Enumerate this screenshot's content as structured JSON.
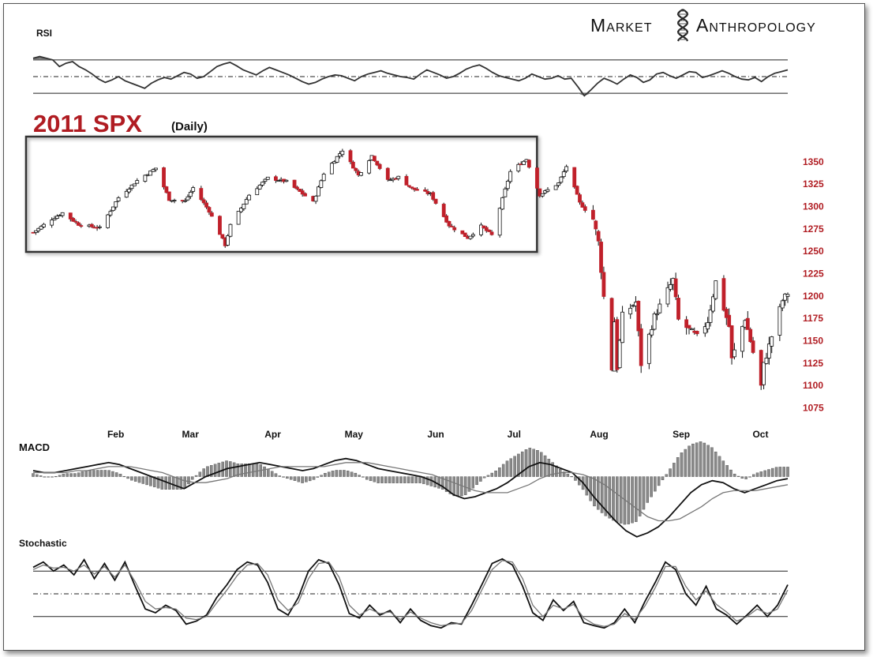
{
  "brand": {
    "word1": "Market",
    "word2": "Anthropology",
    "logo_icon": "dna-helix-icon"
  },
  "chart_data": [
    {
      "type": "candlestick",
      "title": "2011 SPX",
      "subtitle": "(Daily)",
      "yticks": [
        1350,
        1325,
        1300,
        1275,
        1250,
        1225,
        1200,
        1175,
        1150,
        1125,
        1100,
        1075
      ],
      "ylim": [
        1063,
        1372
      ],
      "xticks": [
        "Feb",
        "Mar",
        "Apr",
        "May",
        "Jun",
        "Jul",
        "Aug",
        "Sep",
        "Oct"
      ],
      "up_color": "#ffffff",
      "down_color": "#c0202a",
      "points": [
        {
          "date": "2011-01-03",
          "c": 1271
        },
        {
          "date": "2011-01-10",
          "c": 1286
        },
        {
          "date": "2011-01-14",
          "c": 1293
        },
        {
          "date": "2011-01-20",
          "c": 1280
        },
        {
          "date": "2011-01-28",
          "c": 1276
        },
        {
          "date": "2011-02-04",
          "c": 1310
        },
        {
          "date": "2011-02-11",
          "c": 1329
        },
        {
          "date": "2011-02-18",
          "c": 1343
        },
        {
          "date": "2011-02-23",
          "c": 1308
        },
        {
          "date": "2011-03-01",
          "c": 1306
        },
        {
          "date": "2011-03-04",
          "c": 1321
        },
        {
          "date": "2011-03-10",
          "c": 1295
        },
        {
          "date": "2011-03-16",
          "c": 1257
        },
        {
          "date": "2011-03-18",
          "c": 1279
        },
        {
          "date": "2011-03-25",
          "c": 1313
        },
        {
          "date": "2011-04-01",
          "c": 1332
        },
        {
          "date": "2011-04-08",
          "c": 1328
        },
        {
          "date": "2011-04-18",
          "c": 1305
        },
        {
          "date": "2011-04-22",
          "c": 1337
        },
        {
          "date": "2011-04-29",
          "c": 1363
        },
        {
          "date": "2011-05-05",
          "c": 1335
        },
        {
          "date": "2011-05-10",
          "c": 1357
        },
        {
          "date": "2011-05-16",
          "c": 1329
        },
        {
          "date": "2011-05-20",
          "c": 1333
        },
        {
          "date": "2011-05-25",
          "c": 1320
        },
        {
          "date": "2011-06-01",
          "c": 1314
        },
        {
          "date": "2011-06-08",
          "c": 1279
        },
        {
          "date": "2011-06-15",
          "c": 1265
        },
        {
          "date": "2011-06-20",
          "c": 1278
        },
        {
          "date": "2011-06-24",
          "c": 1268
        },
        {
          "date": "2011-07-01",
          "c": 1339
        },
        {
          "date": "2011-07-07",
          "c": 1353
        },
        {
          "date": "2011-07-12",
          "c": 1313
        },
        {
          "date": "2011-07-19",
          "c": 1326
        },
        {
          "date": "2011-07-22",
          "c": 1345
        },
        {
          "date": "2011-07-27",
          "c": 1304
        },
        {
          "date": "2011-08-01",
          "c": 1286
        },
        {
          "date": "2011-08-03",
          "c": 1260
        },
        {
          "date": "2011-08-05",
          "c": 1199
        },
        {
          "date": "2011-08-08",
          "c": 1119
        },
        {
          "date": "2011-08-09",
          "c": 1172
        },
        {
          "date": "2011-08-10",
          "c": 1120
        },
        {
          "date": "2011-08-12",
          "c": 1178
        },
        {
          "date": "2011-08-17",
          "c": 1193
        },
        {
          "date": "2011-08-19",
          "c": 1124
        },
        {
          "date": "2011-08-24",
          "c": 1177
        },
        {
          "date": "2011-08-31",
          "c": 1218
        },
        {
          "date": "2011-09-02",
          "c": 1173
        },
        {
          "date": "2011-09-09",
          "c": 1154
        },
        {
          "date": "2011-09-13",
          "c": 1172
        },
        {
          "date": "2011-09-16",
          "c": 1216
        },
        {
          "date": "2011-09-21",
          "c": 1166
        },
        {
          "date": "2011-09-22",
          "c": 1129
        },
        {
          "date": "2011-09-27",
          "c": 1175
        },
        {
          "date": "2011-10-03",
          "c": 1099
        },
        {
          "date": "2011-10-04",
          "c": 1123
        },
        {
          "date": "2011-10-07",
          "c": 1155
        },
        {
          "date": "2011-10-11",
          "c": 1195
        },
        {
          "date": "2011-10-13",
          "c": 1203
        }
      ],
      "highlight_range": [
        "2011-01-03",
        "2011-07-08"
      ]
    },
    {
      "type": "line",
      "title": "RSI",
      "levels": [
        70,
        50,
        30
      ],
      "series": [
        {
          "values": [
            72,
            74,
            72,
            70,
            62,
            66,
            68,
            62,
            58,
            53,
            47,
            43,
            46,
            50,
            45,
            42,
            39,
            36,
            42,
            46,
            49,
            47,
            51,
            55,
            53,
            48,
            50,
            56,
            62,
            65,
            67,
            63,
            58,
            55,
            52,
            57,
            61,
            58,
            55,
            52,
            48,
            44,
            41,
            43,
            47,
            50,
            52,
            51,
            48,
            45,
            50,
            53,
            55,
            57,
            54,
            52,
            50,
            49,
            47,
            53,
            58,
            55,
            52,
            48,
            50,
            54,
            59,
            62,
            64,
            60,
            55,
            51,
            49,
            47,
            45,
            48,
            53,
            50,
            47,
            48,
            51,
            47,
            48,
            38,
            27,
            34,
            42,
            48,
            45,
            41,
            47,
            52,
            49,
            43,
            46,
            53,
            55,
            51,
            48,
            52,
            56,
            55,
            49,
            51,
            54,
            57,
            54,
            50,
            47,
            46,
            49,
            44,
            50,
            54,
            56,
            58
          ]
        }
      ]
    },
    {
      "type": "line",
      "title": "MACD",
      "series": [
        {
          "values": [
            3,
            2,
            2,
            3,
            4,
            5,
            6,
            7,
            6,
            4,
            2,
            0,
            -2,
            -4,
            -6,
            -3,
            0,
            2,
            4,
            5,
            6,
            7,
            6,
            5,
            4,
            3,
            4,
            6,
            8,
            9,
            8,
            6,
            4,
            3,
            2,
            1,
            0,
            -2,
            -5,
            -9,
            -11,
            -10,
            -8,
            -6,
            -3,
            1,
            5,
            7,
            6,
            4,
            2,
            -3,
            -10,
            -16,
            -22,
            -27,
            -30,
            -28,
            -25,
            -20,
            -14,
            -8,
            -4,
            -2,
            -3,
            -6,
            -8,
            -6,
            -4,
            -2,
            -1
          ]
        },
        {
          "values": [
            2,
            2,
            2,
            2,
            3,
            3,
            4,
            5,
            5,
            5,
            4,
            3,
            2,
            0,
            -2,
            -3,
            -3,
            -2,
            -1,
            1,
            2,
            3,
            4,
            5,
            5,
            5,
            5,
            5,
            6,
            7,
            7,
            7,
            6,
            5,
            4,
            3,
            2,
            1,
            -1,
            -3,
            -5,
            -7,
            -8,
            -8,
            -8,
            -6,
            -4,
            -1,
            1,
            2,
            2,
            1,
            -1,
            -4,
            -8,
            -12,
            -16,
            -20,
            -22,
            -22,
            -21,
            -18,
            -15,
            -11,
            -8,
            -7,
            -7,
            -7,
            -6,
            -5,
            -4
          ]
        }
      ]
    },
    {
      "type": "line",
      "title": "Stochastic",
      "levels": [
        80,
        50,
        20
      ],
      "series": [
        {
          "values": [
            85,
            92,
            80,
            88,
            75,
            95,
            70,
            90,
            68,
            92,
            60,
            30,
            25,
            35,
            28,
            10,
            14,
            22,
            45,
            62,
            82,
            92,
            88,
            65,
            30,
            22,
            45,
            80,
            95,
            90,
            62,
            24,
            18,
            35,
            22,
            28,
            12,
            30,
            15,
            8,
            5,
            12,
            10,
            35,
            62,
            90,
            96,
            88,
            60,
            25,
            15,
            42,
            28,
            40,
            12,
            8,
            5,
            12,
            30,
            12,
            40,
            65,
            92,
            82,
            50,
            35,
            60,
            30,
            22,
            10,
            22,
            35,
            20,
            35,
            62
          ]
        },
        {
          "values": [
            82,
            88,
            84,
            85,
            80,
            88,
            76,
            86,
            72,
            88,
            66,
            40,
            30,
            32,
            30,
            18,
            16,
            20,
            38,
            55,
            74,
            88,
            90,
            75,
            42,
            28,
            38,
            70,
            90,
            92,
            72,
            35,
            22,
            30,
            24,
            26,
            16,
            26,
            18,
            12,
            8,
            10,
            11,
            28,
            55,
            82,
            94,
            92,
            70,
            35,
            20,
            35,
            30,
            36,
            18,
            10,
            7,
            10,
            24,
            16,
            34,
            58,
            86,
            86,
            60,
            42,
            54,
            36,
            26,
            14,
            20,
            30,
            24,
            30,
            55
          ]
        }
      ]
    }
  ]
}
